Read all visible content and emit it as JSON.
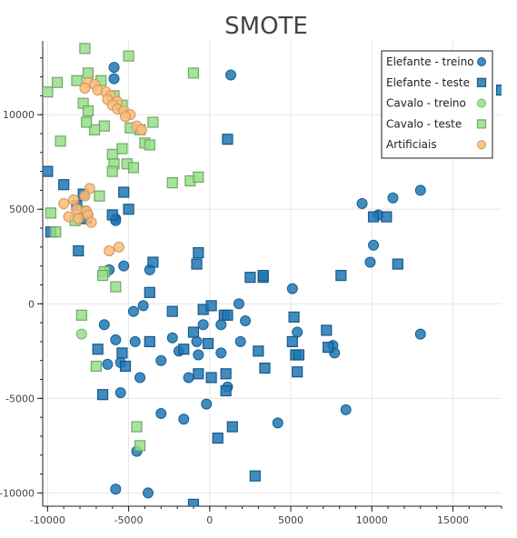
{
  "chart_data": {
    "type": "scatter",
    "title": "SMOTE",
    "xlabel": "",
    "ylabel": "",
    "xlim": [
      -10300,
      18000
    ],
    "ylim": [
      -10700,
      13900
    ],
    "x_ticks": [
      -10000,
      -5000,
      0,
      5000,
      10000,
      15000
    ],
    "y_ticks": [
      -10000,
      -5000,
      0,
      5000,
      10000
    ],
    "grid": true,
    "legend_position": "top-right",
    "series": [
      {
        "name": "Elefante - treino",
        "marker": "circle",
        "color": "#1f77b4",
        "points": [
          [
            -5900,
            12500
          ],
          [
            1300,
            12100
          ],
          [
            -5900,
            11900
          ],
          [
            13000,
            6000
          ],
          [
            11300,
            5600
          ],
          [
            9400,
            5300
          ],
          [
            10400,
            4700
          ],
          [
            -5800,
            4500
          ],
          [
            -5800,
            4400
          ],
          [
            10100,
            3100
          ],
          [
            9900,
            2200
          ],
          [
            -6200,
            1800
          ],
          [
            -3700,
            1800
          ],
          [
            -5300,
            2000
          ],
          [
            1800,
            0
          ],
          [
            5100,
            800
          ],
          [
            -4100,
            -100
          ],
          [
            -4700,
            -400
          ],
          [
            -6500,
            -1100
          ],
          [
            -5800,
            -1900
          ],
          [
            -4600,
            -2000
          ],
          [
            -2300,
            -1800
          ],
          [
            -1900,
            -2500
          ],
          [
            -800,
            -2000
          ],
          [
            -400,
            -1100
          ],
          [
            700,
            -1100
          ],
          [
            2200,
            -900
          ],
          [
            1900,
            -2000
          ],
          [
            -700,
            -2700
          ],
          [
            700,
            -2600
          ],
          [
            5400,
            -1500
          ],
          [
            7600,
            -2200
          ],
          [
            7700,
            -2600
          ],
          [
            13000,
            -1600
          ],
          [
            -5500,
            -3100
          ],
          [
            -6300,
            -3200
          ],
          [
            -4300,
            -3900
          ],
          [
            -3000,
            -3000
          ],
          [
            -1300,
            -3900
          ],
          [
            -200,
            -5300
          ],
          [
            1100,
            -4400
          ],
          [
            4200,
            -6300
          ],
          [
            8400,
            -5600
          ],
          [
            -5500,
            -4700
          ],
          [
            -3000,
            -5800
          ],
          [
            -1600,
            -6100
          ],
          [
            -4500,
            -7800
          ],
          [
            -5800,
            -9800
          ],
          [
            -3800,
            -10000
          ]
        ]
      },
      {
        "name": "Elefante - teste",
        "marker": "square",
        "color": "#1f77b4",
        "points": [
          [
            1100,
            8700
          ],
          [
            18000,
            11300
          ],
          [
            -10000,
            7000
          ],
          [
            -9000,
            6300
          ],
          [
            -7800,
            5800
          ],
          [
            -5300,
            5900
          ],
          [
            -5000,
            5000
          ],
          [
            -8200,
            5200
          ],
          [
            -6000,
            4700
          ],
          [
            -7600,
            4500
          ],
          [
            -9800,
            3800
          ],
          [
            10100,
            4600
          ],
          [
            10900,
            4600
          ],
          [
            -8100,
            2800
          ],
          [
            -700,
            2700
          ],
          [
            -3500,
            2200
          ],
          [
            -800,
            2100
          ],
          [
            11600,
            2100
          ],
          [
            2500,
            1400
          ],
          [
            3300,
            1400
          ],
          [
            3300,
            1500
          ],
          [
            8100,
            1500
          ],
          [
            -3700,
            600
          ],
          [
            -400,
            -300
          ],
          [
            100,
            -100
          ],
          [
            900,
            -600
          ],
          [
            1100,
            -600
          ],
          [
            5200,
            -700
          ],
          [
            -6900,
            -2400
          ],
          [
            -5400,
            -2600
          ],
          [
            -3700,
            -2000
          ],
          [
            -2300,
            -400
          ],
          [
            -1000,
            -1500
          ],
          [
            -1600,
            -2400
          ],
          [
            -100,
            -2100
          ],
          [
            3000,
            -2500
          ],
          [
            5100,
            -2000
          ],
          [
            5300,
            -2700
          ],
          [
            5500,
            -2700
          ],
          [
            7200,
            -1400
          ],
          [
            7300,
            -2300
          ],
          [
            -5200,
            -3300
          ],
          [
            -700,
            -3700
          ],
          [
            100,
            -3900
          ],
          [
            1000,
            -3700
          ],
          [
            3400,
            -3400
          ],
          [
            5400,
            -3600
          ],
          [
            1000,
            -4600
          ],
          [
            -6600,
            -4800
          ],
          [
            1400,
            -6500
          ],
          [
            500,
            -7100
          ],
          [
            2800,
            -9100
          ],
          [
            -1000,
            -10600
          ]
        ]
      },
      {
        "name": "Cavalo - treino",
        "marker": "circle",
        "color": "#98df8a",
        "points": [
          [
            -7900,
            -1600
          ]
        ]
      },
      {
        "name": "Cavalo - teste",
        "marker": "square",
        "color": "#98df8a",
        "points": [
          [
            -7700,
            13500
          ],
          [
            -5000,
            13100
          ],
          [
            -1000,
            12200
          ],
          [
            -7500,
            12200
          ],
          [
            -8200,
            11800
          ],
          [
            -6700,
            11800
          ],
          [
            -9400,
            11700
          ],
          [
            -10000,
            11200
          ],
          [
            -5900,
            11000
          ],
          [
            -7800,
            10600
          ],
          [
            -7500,
            10200
          ],
          [
            -5400,
            10500
          ],
          [
            -3500,
            9600
          ],
          [
            -4300,
            9200
          ],
          [
            -4900,
            9300
          ],
          [
            -6500,
            9400
          ],
          [
            -7100,
            9200
          ],
          [
            -7600,
            9600
          ],
          [
            -9200,
            8600
          ],
          [
            -4000,
            8500
          ],
          [
            -3700,
            8400
          ],
          [
            -5400,
            8200
          ],
          [
            -6000,
            7900
          ],
          [
            -5900,
            7400
          ],
          [
            -5100,
            7400
          ],
          [
            -4700,
            7200
          ],
          [
            -6000,
            7000
          ],
          [
            -2300,
            6400
          ],
          [
            -1200,
            6500
          ],
          [
            -700,
            6700
          ],
          [
            -6800,
            5700
          ],
          [
            -9800,
            4800
          ],
          [
            -7800,
            4900
          ],
          [
            -8300,
            4400
          ],
          [
            -9500,
            3800
          ],
          [
            -6500,
            1700
          ],
          [
            -6600,
            1500
          ],
          [
            -5800,
            900
          ],
          [
            -7900,
            -600
          ],
          [
            -7000,
            -3300
          ],
          [
            -4500,
            -6500
          ],
          [
            -4300,
            -7500
          ]
        ]
      },
      {
        "name": "Artificiais",
        "marker": "circle",
        "color": "#ffbb78",
        "points": [
          [
            -7500,
            11700
          ],
          [
            -7100,
            11600
          ],
          [
            -7700,
            11400
          ],
          [
            -6900,
            11300
          ],
          [
            -6400,
            11200
          ],
          [
            -6100,
            11000
          ],
          [
            -6300,
            10800
          ],
          [
            -5700,
            10700
          ],
          [
            -6000,
            10500
          ],
          [
            -5700,
            10300
          ],
          [
            -5300,
            10200
          ],
          [
            -4900,
            10000
          ],
          [
            -5200,
            9900
          ],
          [
            -4500,
            9400
          ],
          [
            -4200,
            9200
          ],
          [
            -7400,
            6100
          ],
          [
            -7700,
            5700
          ],
          [
            -8400,
            5500
          ],
          [
            -9000,
            5300
          ],
          [
            -8200,
            5000
          ],
          [
            -7600,
            4900
          ],
          [
            -7500,
            4700
          ],
          [
            -8700,
            4600
          ],
          [
            -8100,
            4500
          ],
          [
            -7300,
            4300
          ],
          [
            -5600,
            3000
          ],
          [
            -6200,
            2800
          ]
        ]
      }
    ]
  }
}
